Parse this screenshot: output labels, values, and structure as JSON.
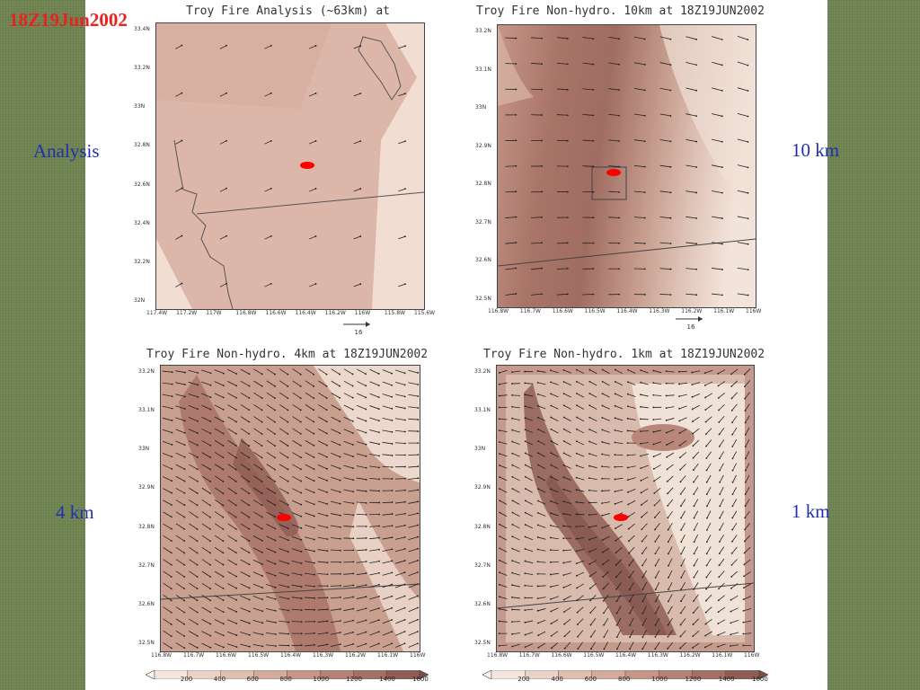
{
  "slide": {
    "title": "18Z19Jun2002",
    "labels": {
      "analysis": "Analysis",
      "km10": "10 km",
      "km4": "4 km",
      "km1": "1 km"
    }
  },
  "panels": {
    "analysis": {
      "title": "Troy Fire Analysis (~63km) at",
      "yticks": [
        "33.4N",
        "33.2N",
        "33N",
        "32.8N",
        "32.6N",
        "32.4N",
        "32.2N",
        "32N"
      ],
      "xticks": [
        "117.4W",
        "117.2W",
        "117W",
        "116.8W",
        "116.6W",
        "116.4W",
        "116.2W",
        "116W",
        "115.8W",
        "115.6W"
      ],
      "ref_vector": "16"
    },
    "km10": {
      "title": "Troy Fire Non-hydro. 10km at 18Z19JUN2002",
      "yticks": [
        "33.2N",
        "33.1N",
        "33N",
        "32.9N",
        "32.8N",
        "32.7N",
        "32.6N",
        "32.5N"
      ],
      "xticks": [
        "116.8W",
        "116.7W",
        "116.6W",
        "116.5W",
        "116.4W",
        "116.3W",
        "116.2W",
        "116.1W",
        "116W"
      ],
      "ref_vector": "16"
    },
    "km4": {
      "title": "Troy Fire Non-hydro. 4km at 18Z19JUN2002",
      "yticks": [
        "33.2N",
        "33.1N",
        "33N",
        "32.9N",
        "32.8N",
        "32.7N",
        "32.6N",
        "32.5N"
      ],
      "xticks": [
        "116.8W",
        "116.7W",
        "116.6W",
        "116.5W",
        "116.4W",
        "116.3W",
        "116.2W",
        "116.1W",
        "116W"
      ]
    },
    "km1": {
      "title": "Troy Fire Non-hydro. 1km at 18Z19JUN2002",
      "yticks": [
        "33.2N",
        "33.1N",
        "33N",
        "32.9N",
        "32.8N",
        "32.7N",
        "32.6N",
        "32.5N"
      ],
      "xticks": [
        "116.8W",
        "116.7W",
        "116.6W",
        "116.5W",
        "116.4W",
        "116.3W",
        "116.2W",
        "116.1W",
        "116W"
      ]
    }
  },
  "colorbar": {
    "levels": [
      "200",
      "400",
      "600",
      "800",
      "1000",
      "1200",
      "1400",
      "1600"
    ],
    "colors": [
      "#f4e6dc",
      "#ead3c6",
      "#dfbfb0",
      "#d2ab9c",
      "#c49688",
      "#b48276",
      "#a27066",
      "#8c5e55"
    ]
  },
  "colors": {
    "accent_title": "#e8231e",
    "label_blue": "#1f2fb0",
    "marker": "#ff0000"
  }
}
